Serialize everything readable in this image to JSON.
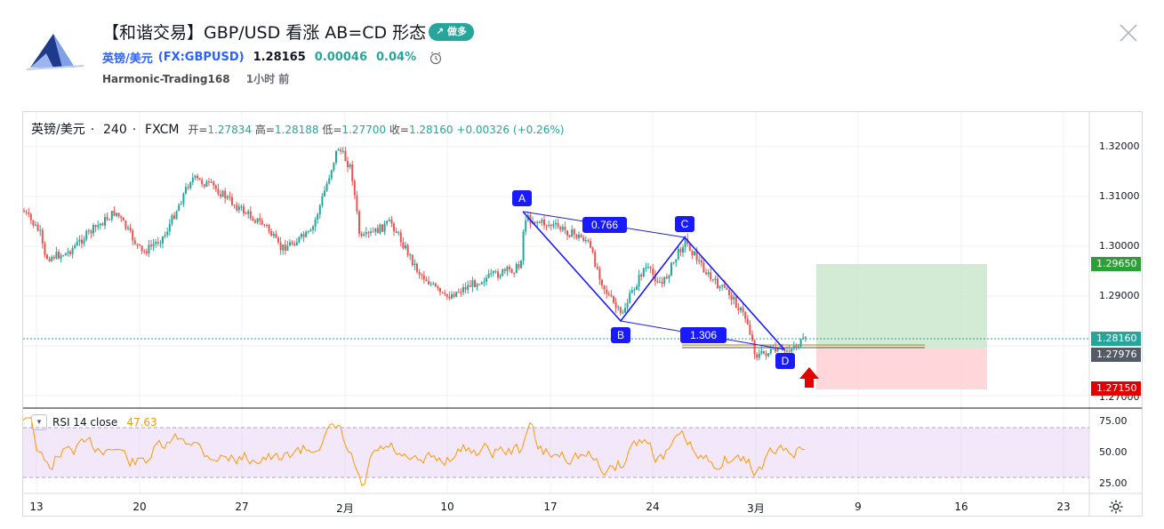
{
  "header": {
    "title": "【和谐交易】GBP/USD 看涨 AB=CD 形态",
    "badge": "↗ 做多",
    "symbol_name": "英镑/美元",
    "symbol_code": "(FX:GBPUSD)",
    "price": "1.28165",
    "change": "0.00046",
    "change_pct": "0.04%",
    "author": "Harmonic-Trading168",
    "time_ago": "1小时 前"
  },
  "ohlc": {
    "symbol": "英镑/美元",
    "interval": "240",
    "source": "FXCM",
    "open_label": "开=",
    "open": "1.27834",
    "high_label": "高=",
    "high": "1.28188",
    "low_label": "低=",
    "low": "1.27700",
    "close_label": "收=",
    "close": "1.28160",
    "change": "+0.00326 (+0.26%)"
  },
  "price_axis": {
    "ticks": [
      "1.32000",
      "1.31000",
      "1.30000",
      "1.29000",
      "1.27000"
    ],
    "tags": {
      "target": "1.29650",
      "current": "1.28160",
      "entry": "1.27976",
      "stop": "1.27150"
    }
  },
  "pattern": {
    "points": [
      "A",
      "B",
      "C",
      "D"
    ],
    "ratio_ac": "0.766",
    "ratio_bd": "1.306"
  },
  "rsi": {
    "label": "RSI 14 close",
    "value": "47.63",
    "ticks": [
      "75.00",
      "50.00",
      "25.00"
    ]
  },
  "time_axis": [
    "13",
    "20",
    "27",
    "2月",
    "10",
    "17",
    "24",
    "3月",
    "9",
    "16",
    "23"
  ],
  "colors": {
    "up": "#26a69a",
    "down": "#ef5350",
    "pattern": "#1a1aff",
    "rsi": "#ff9800",
    "target_zone": "#c8e6c9",
    "stop_zone": "#ffcdd2",
    "badge": "#26a69a"
  }
}
